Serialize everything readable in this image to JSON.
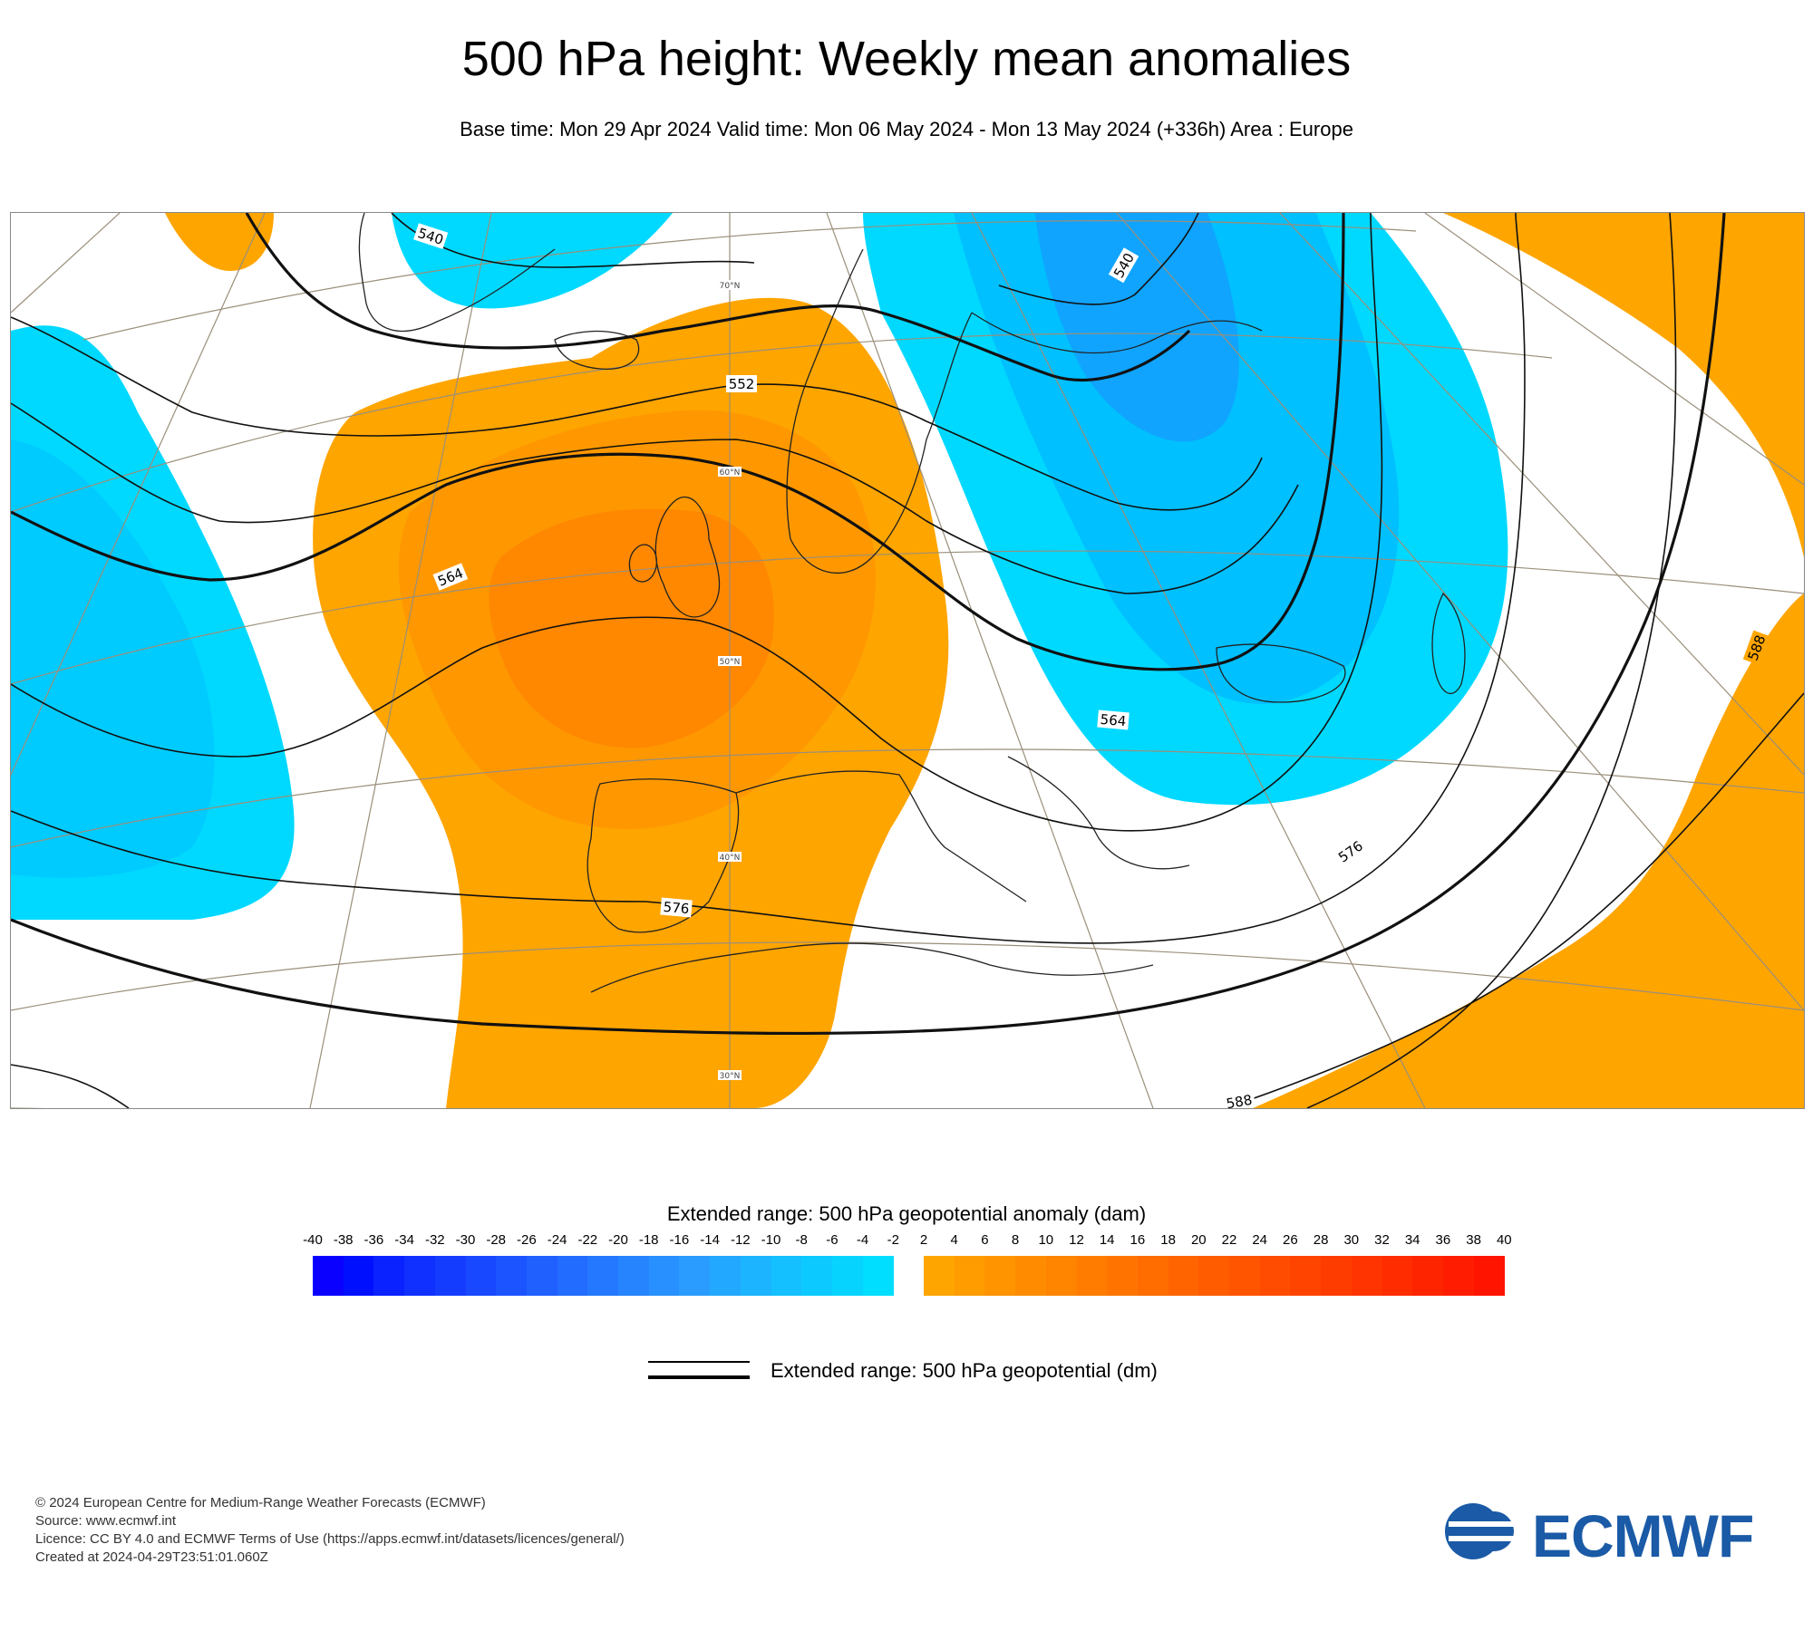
{
  "title": "500 hPa height: Weekly mean anomalies",
  "subtitle": "Base time: Mon 29 Apr 2024 Valid time: Mon 06 May 2024 - Mon 13 May 2024 (+336h) Area : Europe",
  "map": {
    "contour_labels": [
      "540",
      "540",
      "552",
      "564",
      "564",
      "576",
      "576",
      "588",
      "588"
    ],
    "lat_labels": [
      "70°N",
      "60°N",
      "50°N",
      "40°N",
      "30°N"
    ]
  },
  "legend": {
    "title": "Extended range: 500 hPa geopotential anomaly (dam)",
    "ticks": [
      "-40",
      "-38",
      "-36",
      "-34",
      "-32",
      "-30",
      "-28",
      "-26",
      "-24",
      "-22",
      "-20",
      "-18",
      "-16",
      "-14",
      "-12",
      "-10",
      "-8",
      "-6",
      "-4",
      "-2",
      "2",
      "4",
      "6",
      "8",
      "10",
      "12",
      "14",
      "16",
      "18",
      "20",
      "22",
      "24",
      "26",
      "28",
      "30",
      "32",
      "34",
      "36",
      "38",
      "40"
    ],
    "negative_colors": [
      "#0a00ff",
      "#0010ff",
      "#0a22ff",
      "#1030ff",
      "#143cff",
      "#1848ff",
      "#1c54ff",
      "#2060ff",
      "#226cff",
      "#2478ff",
      "#2684ff",
      "#2890ff",
      "#2a9cff",
      "#22a8ff",
      "#1cb4ff",
      "#14c0ff",
      "#0ccaff",
      "#06d4ff",
      "#00deff"
    ],
    "positive_colors": [
      "#ffa500",
      "#ff9c00",
      "#ff9400",
      "#ff8c00",
      "#ff8400",
      "#ff7c00",
      "#ff7400",
      "#ff6c00",
      "#ff6400",
      "#ff5c00",
      "#ff5400",
      "#ff4c00",
      "#ff4400",
      "#ff3c00",
      "#ff3400",
      "#ff2c00",
      "#ff2400",
      "#ff1c00",
      "#ff1400"
    ],
    "line_label": "Extended range: 500 hPa geopotential (dm)"
  },
  "footer": [
    "© 2024 European Centre for Medium-Range Weather Forecasts (ECMWF)",
    "Source: www.ecmwf.int",
    "Licence: CC BY 4.0 and ECMWF Terms of Use (https://apps.ecmwf.int/datasets/licences/general/)",
    "Created at 2024-04-29T23:51:01.060Z"
  ],
  "logo": {
    "text": "ECMWF",
    "color": "#1a5aa6"
  },
  "colors": {
    "cyan": "#00d9ff",
    "blue_mid": "#00c0ff",
    "blue_deep": "#10a4ff",
    "orange": "#ffa500",
    "orange_mid": "#ff9c00",
    "orange_deep": "#ff8800"
  }
}
